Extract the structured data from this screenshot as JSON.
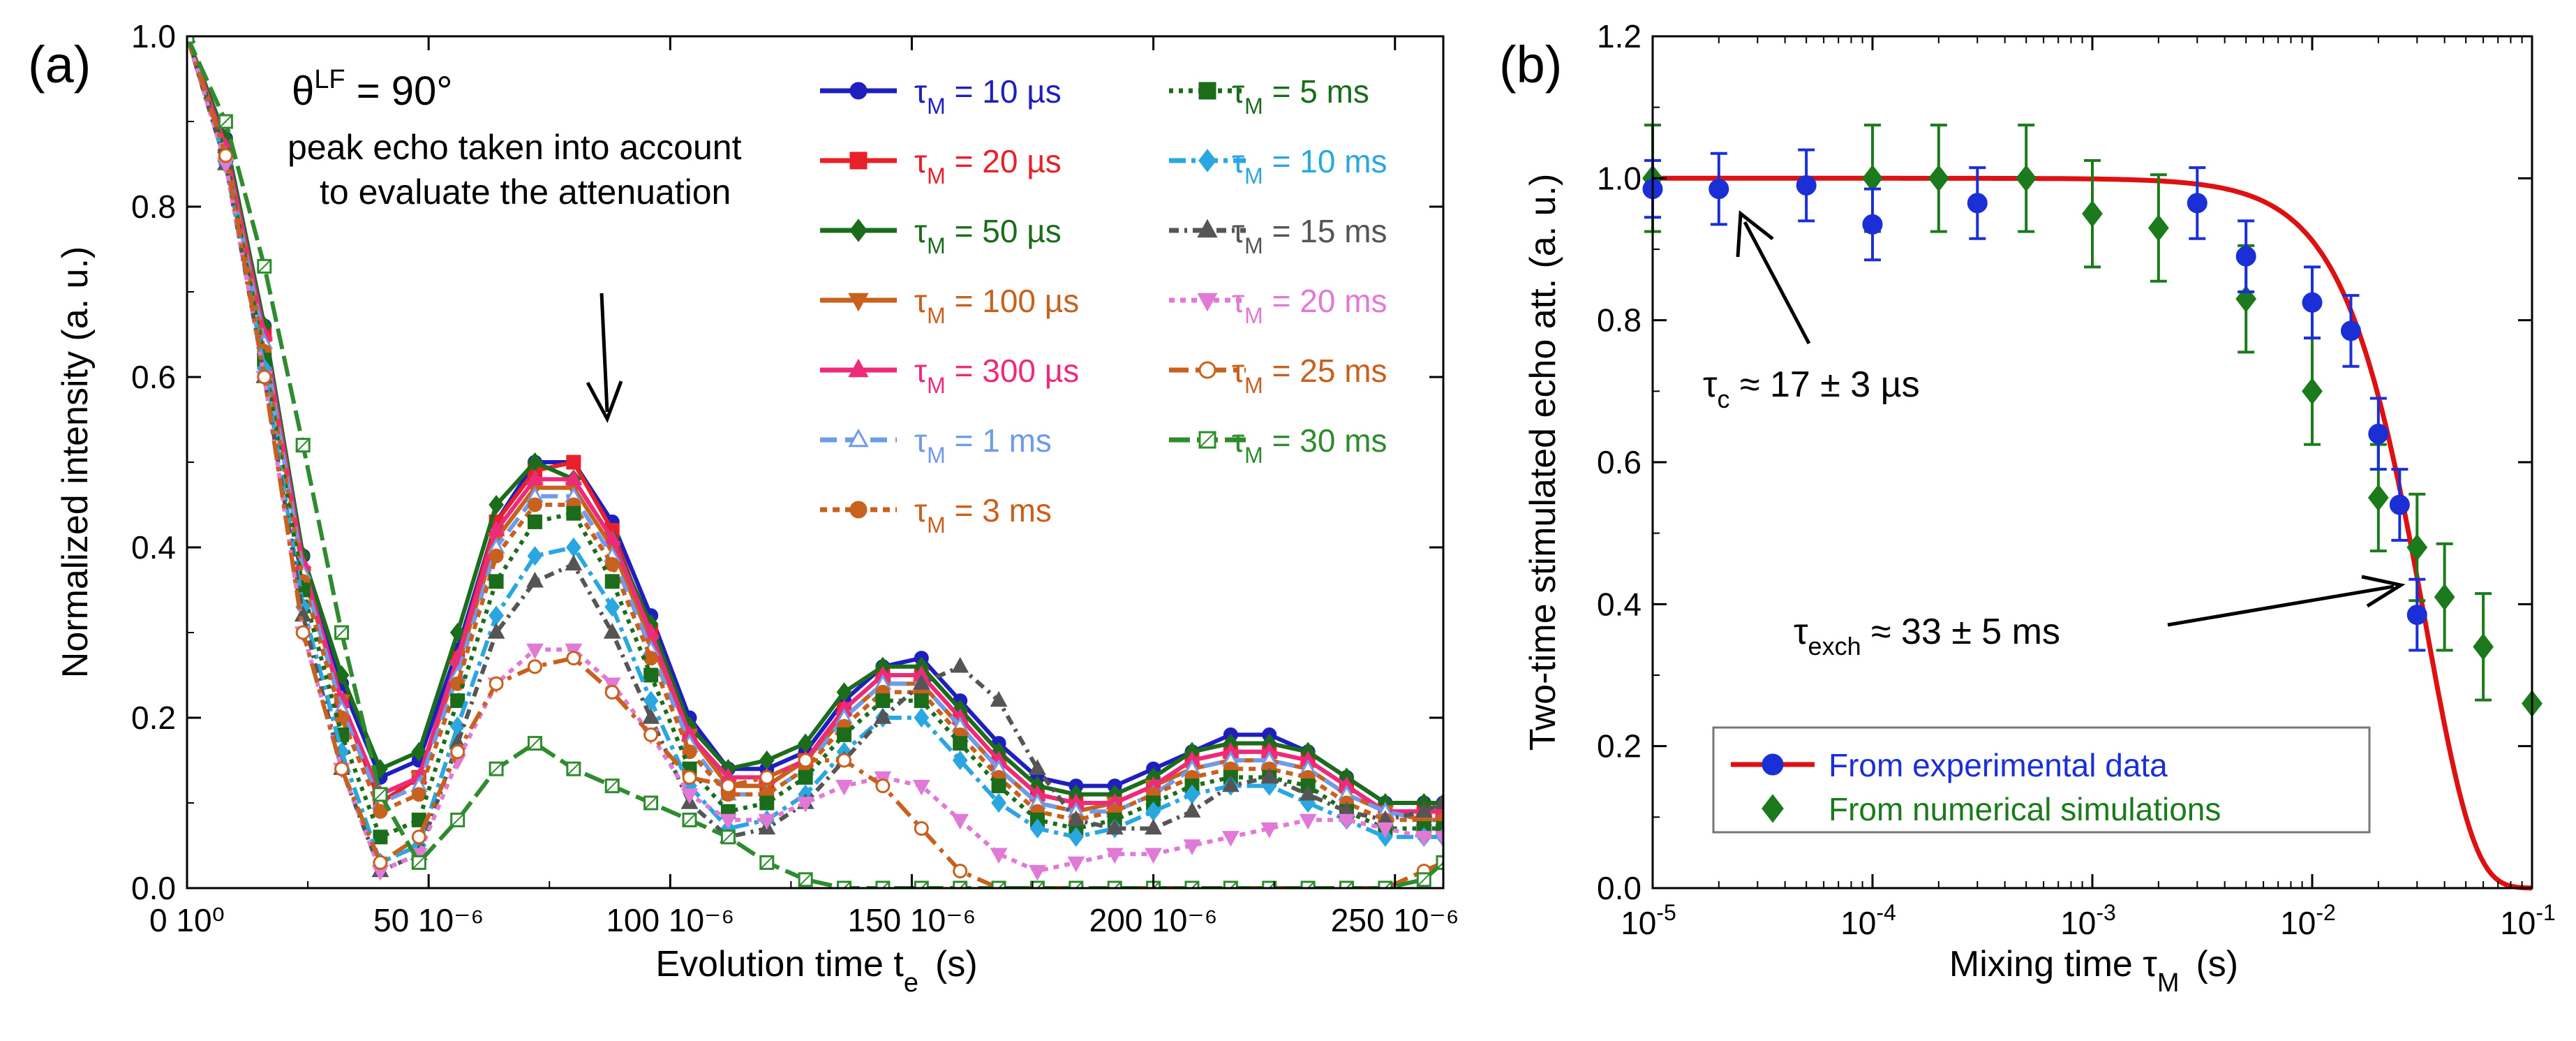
{
  "chart_data": [
    {
      "panel": "(a)",
      "type": "line",
      "title": "",
      "xlabel": "Evolution time t",
      "xlabel_sub": "e",
      "xlabel_unit": "(s)",
      "ylabel": "Normalized intensity  (a. u.)",
      "xlim": [
        0,
        260
      ],
      "ylim": [
        0,
        1.0
      ],
      "x_ticks": [
        {
          "v": 0,
          "label": "0 10⁰"
        },
        {
          "v": 50,
          "label": "50 10⁻⁶"
        },
        {
          "v": 100,
          "label": "100 10⁻⁶"
        },
        {
          "v": 150,
          "label": "150 10⁻⁶"
        },
        {
          "v": 200,
          "label": "200 10⁻⁶"
        },
        {
          "v": 250,
          "label": "250 10⁻⁶"
        }
      ],
      "y_ticks": [
        {
          "v": 0,
          "label": "0.0"
        },
        {
          "v": 0.2,
          "label": "0.2"
        },
        {
          "v": 0.4,
          "label": "0.4"
        },
        {
          "v": 0.6,
          "label": "0.6"
        },
        {
          "v": 0.8,
          "label": "0.8"
        },
        {
          "v": 1.0,
          "label": "1.0"
        }
      ],
      "annotations": {
        "theta_symbol": "θ",
        "theta_sup": "LF",
        "theta_value": " = 90°",
        "note_line1": "peak echo taken into account",
        "note_line2": "to evaluate the attenuation"
      },
      "x": [
        0,
        8,
        16,
        24,
        32,
        40,
        48,
        56,
        64,
        72,
        80,
        88,
        96,
        104,
        112,
        120,
        128,
        136,
        144,
        152,
        160,
        168,
        176,
        184,
        192,
        200,
        208,
        216,
        224,
        232,
        240,
        248,
        256,
        260
      ],
      "series": [
        {
          "name": "10 µs",
          "unit": "µs",
          "color": "#1f1fbf",
          "dash": "",
          "marker": "circle",
          "fill": true,
          "values": [
            1.0,
            0.88,
            0.66,
            0.39,
            0.24,
            0.13,
            0.15,
            0.28,
            0.43,
            0.5,
            0.5,
            0.43,
            0.32,
            0.2,
            0.14,
            0.14,
            0.16,
            0.22,
            0.26,
            0.27,
            0.22,
            0.17,
            0.13,
            0.12,
            0.12,
            0.14,
            0.16,
            0.18,
            0.18,
            0.16,
            0.13,
            0.1,
            0.1,
            0.1
          ]
        },
        {
          "name": "20 µs",
          "unit": "µs",
          "color": "#e8202a",
          "dash": "",
          "marker": "square",
          "fill": true,
          "values": [
            1.0,
            0.87,
            0.65,
            0.37,
            0.22,
            0.1,
            0.13,
            0.27,
            0.43,
            0.49,
            0.5,
            0.42,
            0.3,
            0.18,
            0.12,
            0.12,
            0.15,
            0.21,
            0.25,
            0.25,
            0.2,
            0.15,
            0.11,
            0.1,
            0.1,
            0.12,
            0.15,
            0.16,
            0.16,
            0.15,
            0.12,
            0.09,
            0.09,
            0.09
          ]
        },
        {
          "name": "50 µs",
          "unit": "µs",
          "color": "#1b6d1b",
          "dash": "",
          "marker": "diamond",
          "fill": true,
          "values": [
            1.0,
            0.88,
            0.66,
            0.39,
            0.25,
            0.14,
            0.16,
            0.3,
            0.45,
            0.5,
            0.48,
            0.41,
            0.31,
            0.19,
            0.14,
            0.15,
            0.17,
            0.23,
            0.26,
            0.26,
            0.21,
            0.16,
            0.12,
            0.11,
            0.11,
            0.13,
            0.16,
            0.17,
            0.17,
            0.16,
            0.13,
            0.1,
            0.1,
            0.1
          ]
        },
        {
          "name": "100 µs",
          "unit": "µs",
          "color": "#c8601e",
          "dash": "",
          "marker": "triangle-down",
          "fill": true,
          "values": [
            1.0,
            0.86,
            0.64,
            0.37,
            0.22,
            0.11,
            0.13,
            0.26,
            0.41,
            0.47,
            0.47,
            0.4,
            0.29,
            0.18,
            0.12,
            0.12,
            0.15,
            0.2,
            0.24,
            0.24,
            0.19,
            0.14,
            0.1,
            0.09,
            0.1,
            0.12,
            0.14,
            0.15,
            0.15,
            0.14,
            0.11,
            0.09,
            0.08,
            0.08
          ]
        },
        {
          "name": "300 µs",
          "unit": "µs",
          "color": "#ee2a7b",
          "dash": "",
          "marker": "triangle-up",
          "fill": true,
          "values": [
            1.0,
            0.87,
            0.65,
            0.38,
            0.22,
            0.11,
            0.13,
            0.27,
            0.42,
            0.48,
            0.48,
            0.41,
            0.3,
            0.18,
            0.13,
            0.13,
            0.15,
            0.21,
            0.25,
            0.25,
            0.2,
            0.15,
            0.11,
            0.1,
            0.1,
            0.12,
            0.15,
            0.16,
            0.16,
            0.15,
            0.12,
            0.09,
            0.09,
            0.09
          ]
        },
        {
          "name": "1 ms",
          "unit": "ms",
          "color": "#6f9be8",
          "dash": "24 12",
          "marker": "triangle-up",
          "fill": false,
          "values": [
            1.0,
            0.86,
            0.64,
            0.37,
            0.21,
            0.1,
            0.12,
            0.25,
            0.4,
            0.46,
            0.46,
            0.39,
            0.28,
            0.17,
            0.11,
            0.11,
            0.14,
            0.2,
            0.24,
            0.24,
            0.19,
            0.14,
            0.1,
            0.09,
            0.09,
            0.11,
            0.14,
            0.15,
            0.15,
            0.14,
            0.11,
            0.09,
            0.08,
            0.08
          ]
        },
        {
          "name": "3 ms",
          "unit": "ms",
          "color": "#c8601e",
          "dash": "10 8",
          "marker": "circle",
          "fill": true,
          "values": [
            1.0,
            0.86,
            0.63,
            0.36,
            0.2,
            0.09,
            0.11,
            0.24,
            0.39,
            0.45,
            0.45,
            0.38,
            0.27,
            0.16,
            0.11,
            0.11,
            0.14,
            0.19,
            0.23,
            0.23,
            0.18,
            0.13,
            0.09,
            0.08,
            0.09,
            0.11,
            0.13,
            0.14,
            0.14,
            0.13,
            0.1,
            0.08,
            0.08,
            0.08
          ]
        },
        {
          "name": "5 ms",
          "unit": "ms",
          "color": "#1b6d1b",
          "dash": "6 8",
          "marker": "square",
          "fill": true,
          "values": [
            1.0,
            0.86,
            0.62,
            0.35,
            0.18,
            0.06,
            0.08,
            0.22,
            0.36,
            0.43,
            0.44,
            0.36,
            0.25,
            0.14,
            0.09,
            0.1,
            0.13,
            0.18,
            0.22,
            0.22,
            0.17,
            0.12,
            0.08,
            0.07,
            0.08,
            0.1,
            0.12,
            0.13,
            0.13,
            0.12,
            0.09,
            0.07,
            0.07,
            0.07
          ]
        },
        {
          "name": "10 ms",
          "unit": "ms",
          "color": "#2aa7e0",
          "dash": "24 8 6 8",
          "marker": "diamond",
          "fill": true,
          "values": [
            1.0,
            0.85,
            0.61,
            0.33,
            0.16,
            0.03,
            0.05,
            0.19,
            0.32,
            0.39,
            0.4,
            0.33,
            0.22,
            0.12,
            0.07,
            0.08,
            0.11,
            0.16,
            0.2,
            0.2,
            0.15,
            0.1,
            0.07,
            0.06,
            0.07,
            0.09,
            0.11,
            0.12,
            0.12,
            0.1,
            0.08,
            0.06,
            0.06,
            0.06
          ]
        },
        {
          "name": "15 ms",
          "unit": "ms",
          "color": "#555555",
          "dash": "14 8 4 8",
          "marker": "triangle-up",
          "fill": true,
          "values": [
            1.0,
            0.85,
            0.6,
            0.32,
            0.14,
            0.02,
            0.04,
            0.17,
            0.3,
            0.36,
            0.38,
            0.3,
            0.2,
            0.1,
            0.06,
            0.07,
            0.1,
            0.15,
            0.2,
            0.24,
            0.26,
            0.22,
            0.14,
            0.08,
            0.07,
            0.07,
            0.09,
            0.12,
            0.13,
            0.11,
            0.09,
            0.08,
            0.09,
            0.1
          ]
        },
        {
          "name": "20 ms",
          "unit": "ms",
          "color": "#e07ad6",
          "dash": "8 8",
          "marker": "triangle-down",
          "fill": true,
          "values": [
            1.0,
            0.85,
            0.6,
            0.3,
            0.14,
            0.02,
            0.04,
            0.15,
            0.24,
            0.28,
            0.28,
            0.24,
            0.18,
            0.11,
            0.08,
            0.08,
            0.1,
            0.12,
            0.13,
            0.12,
            0.08,
            0.04,
            0.02,
            0.03,
            0.04,
            0.04,
            0.05,
            0.06,
            0.07,
            0.08,
            0.08,
            0.07,
            0.06,
            0.06
          ]
        },
        {
          "name": "25 ms",
          "unit": "ms",
          "color": "#c8601e",
          "dash": "28 10 6 10",
          "marker": "circle",
          "fill": false,
          "values": [
            1.0,
            0.86,
            0.6,
            0.3,
            0.14,
            0.03,
            0.06,
            0.16,
            0.24,
            0.26,
            0.27,
            0.23,
            0.18,
            0.13,
            0.12,
            0.13,
            0.15,
            0.15,
            0.12,
            0.07,
            0.02,
            0.0,
            0.0,
            0.0,
            0.0,
            0.0,
            0.0,
            0.0,
            0.0,
            0.0,
            0.0,
            0.0,
            0.02,
            0.03
          ]
        },
        {
          "name": "30 ms",
          "unit": "ms",
          "color": "#2e8b2e",
          "dash": "30 10",
          "marker": "square-x",
          "fill": false,
          "values": [
            1.0,
            0.9,
            0.73,
            0.52,
            0.3,
            0.11,
            0.03,
            0.08,
            0.14,
            0.17,
            0.14,
            0.12,
            0.1,
            0.08,
            0.06,
            0.03,
            0.01,
            0.0,
            0.0,
            0.0,
            0.0,
            0.0,
            0.0,
            0.0,
            0.0,
            0.0,
            0.0,
            0.0,
            0.0,
            0.0,
            0.0,
            0.0,
            0.01,
            0.03
          ]
        }
      ]
    },
    {
      "panel": "(b)",
      "type": "scatter",
      "title": "",
      "xlabel": "Mixing time  τ",
      "xlabel_sub": "M",
      "xlabel_unit": "(s)",
      "ylabel": "Two-time stimulated echo att.   (a. u.)",
      "xscale": "log",
      "xlim": [
        1e-05,
        0.1
      ],
      "ylim": [
        0,
        1.2
      ],
      "x_ticks": [
        {
          "v": 1e-05,
          "base": "10",
          "exp": "-5"
        },
        {
          "v": 0.0001,
          "base": "10",
          "exp": "-4"
        },
        {
          "v": 0.001,
          "base": "10",
          "exp": "-3"
        },
        {
          "v": 0.01,
          "base": "10",
          "exp": "-2"
        },
        {
          "v": 0.1,
          "base": "10",
          "exp": "-1"
        }
      ],
      "y_ticks": [
        {
          "v": 0,
          "label": "0.0"
        },
        {
          "v": 0.2,
          "label": "0.2"
        },
        {
          "v": 0.4,
          "label": "0.4"
        },
        {
          "v": 0.6,
          "label": "0.6"
        },
        {
          "v": 0.8,
          "label": "0.8"
        },
        {
          "v": 1.0,
          "label": "1.0"
        },
        {
          "v": 1.2,
          "label": "1.2"
        }
      ],
      "annotations": {
        "tau_c_symbol": "τ",
        "tau_c_sub": "c",
        "tau_c_text": " ≈ 17 ± 3 µs",
        "tau_exch_symbol": "τ",
        "tau_exch_sub": "exch",
        "tau_exch_text": " ≈ 33 ± 5 ms"
      },
      "fit": {
        "color": "#dd1111",
        "tau_c": 1.7e-05,
        "tau_exch": 0.033
      },
      "series": [
        {
          "name": "From experimental data",
          "color": "#1a2fd6",
          "marker": "circle",
          "x": [
            1e-05,
            2e-05,
            5e-05,
            0.0001,
            0.0003,
            0.003,
            0.005,
            0.01,
            0.015,
            0.02,
            0.025,
            0.03
          ],
          "y": [
            0.985,
            0.985,
            0.99,
            0.935,
            0.965,
            0.965,
            0.89,
            0.825,
            0.785,
            0.64,
            0.54,
            0.385
          ],
          "err": [
            0.04,
            0.05,
            0.05,
            0.05,
            0.05,
            0.05,
            0.05,
            0.05,
            0.05,
            0.05,
            0.05,
            0.05
          ]
        },
        {
          "name": "From numerical simulations",
          "color": "#1b7a1b",
          "marker": "diamond",
          "x": [
            1e-05,
            0.0001,
            0.0002,
            0.0005,
            0.001,
            0.002,
            0.005,
            0.01,
            0.02,
            0.03,
            0.04,
            0.06,
            0.1
          ],
          "y": [
            1.0,
            1.0,
            1.0,
            1.0,
            0.95,
            0.93,
            0.83,
            0.7,
            0.55,
            0.48,
            0.41,
            0.34,
            0.26
          ],
          "err": [
            0.075,
            0.075,
            0.075,
            0.075,
            0.075,
            0.075,
            0.075,
            0.075,
            0.075,
            0.075,
            0.075,
            0.075,
            0.0
          ]
        }
      ]
    }
  ]
}
